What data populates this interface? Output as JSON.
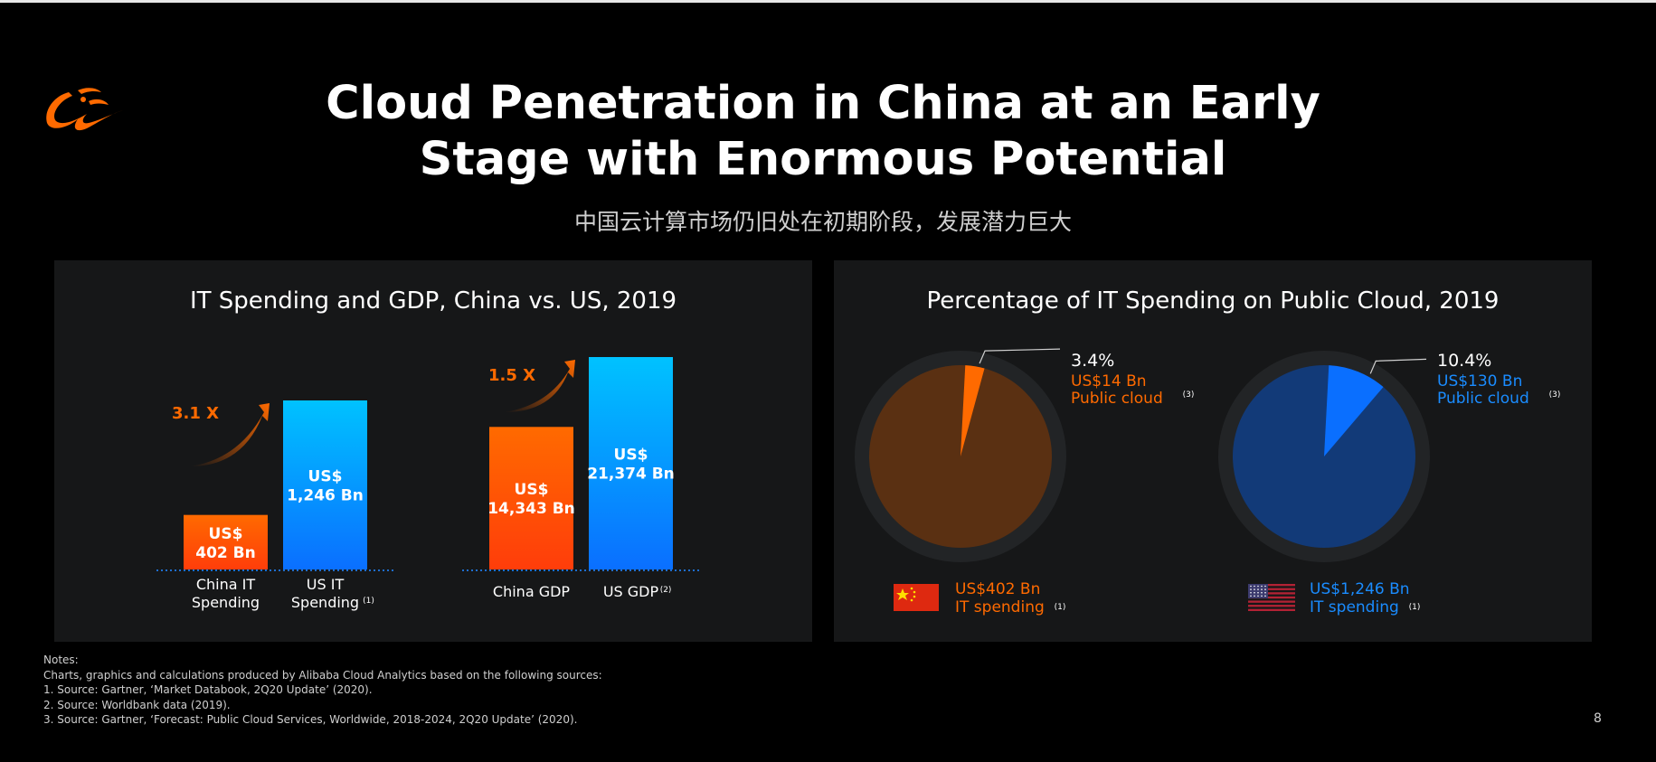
{
  "header": {
    "title_line1": "Cloud Penetration in China at an Early",
    "title_line2": "Stage with Enormous Potential",
    "subtitle": "中国云计算市场仍旧处在初期阶段，发展潜力巨大"
  },
  "colors": {
    "orange": "#ff6a00",
    "orange_dark": "#ff3d0a",
    "blue_light": "#00c0ff",
    "blue": "#0a6fff",
    "pie_china_bg": "#5a3012",
    "pie_us_bg": "#123a78",
    "panel_bg": "#161718"
  },
  "chart_data": [
    {
      "type": "bar",
      "title": "IT Spending and GDP, China vs. US, 2019",
      "unit": "US$ Bn",
      "groups": [
        {
          "categories": [
            "China IT Spending",
            "US IT Spending"
          ],
          "category_lines": [
            [
              "China IT",
              "Spending"
            ],
            [
              "US IT",
              "Spending"
            ]
          ],
          "footnotes": [
            "",
            "(1)"
          ],
          "values": [
            402,
            1246
          ],
          "labels": [
            [
              "US$",
              "402 Bn"
            ],
            [
              "US$",
              "1,246 Bn"
            ]
          ],
          "multiplier": "3.1 X"
        },
        {
          "categories": [
            "China GDP",
            "US GDP"
          ],
          "category_lines": [
            [
              "China GDP"
            ],
            [
              "US GDP"
            ]
          ],
          "footnotes": [
            "",
            "(2)"
          ],
          "values": [
            14343,
            21374
          ],
          "labels": [
            [
              "US$",
              "14,343 Bn"
            ],
            [
              "US$",
              "21,374 Bn"
            ]
          ],
          "multiplier": "1.5 X"
        }
      ]
    },
    {
      "type": "pie",
      "title": "Percentage of IT Spending on Public Cloud, 2019",
      "pies": [
        {
          "country": "China",
          "cloud_pct": 3.4,
          "pct_label": "3.4%",
          "cloud_value": "US$14 Bn",
          "cloud_label": "Public cloud",
          "cloud_footnote": "(3)",
          "total_value": "US$402 Bn",
          "total_label": "IT spending",
          "total_footnote": "(1)",
          "flag_icon": "china-flag-icon"
        },
        {
          "country": "US",
          "cloud_pct": 10.4,
          "pct_label": "10.4%",
          "cloud_value": "US$130 Bn",
          "cloud_label": "Public cloud",
          "cloud_footnote": "(3)",
          "total_value": "US$1,246 Bn",
          "total_label": "IT spending",
          "total_footnote": "(1)",
          "flag_icon": "us-flag-icon"
        }
      ]
    }
  ],
  "notes": {
    "heading": "Notes:",
    "intro": "Charts, graphics and calculations produced by Alibaba Cloud Analytics based on the following sources:",
    "items": [
      "1.  Source: Gartner, ‘Market Databook, 2Q20 Update’ (2020).",
      "2.  Source: Worldbank data (2019).",
      "3.  Source: Gartner,  ‘Forecast: Public Cloud Services, Worldwide, 2018-2024, 2Q20 Update’ (2020)."
    ]
  },
  "page_number": "8",
  "logo_icon": "alibaba-logo-icon"
}
